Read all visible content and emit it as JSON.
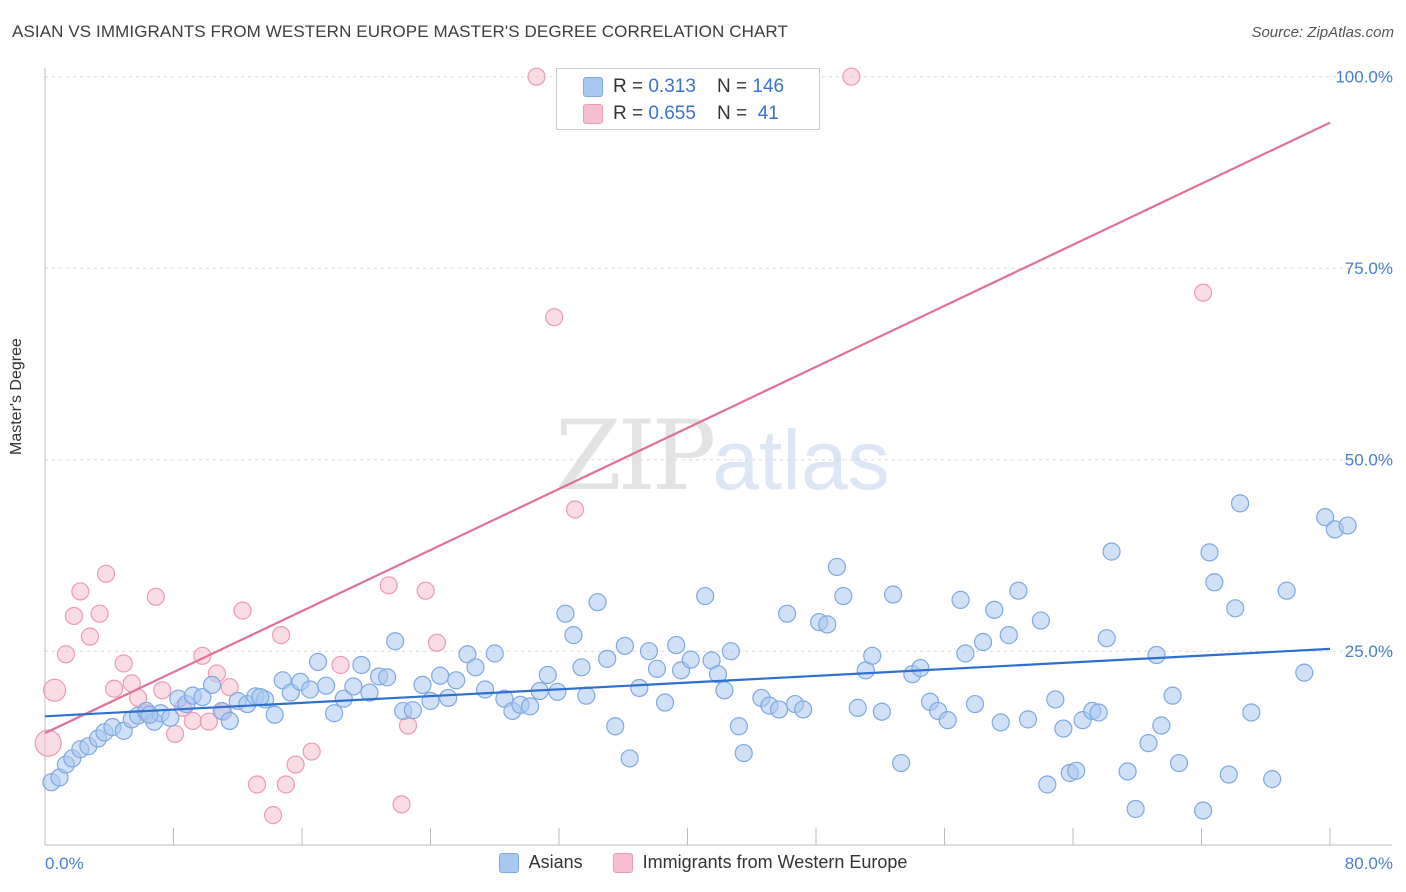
{
  "title": "ASIAN VS IMMIGRANTS FROM WESTERN EUROPE MASTER'S DEGREE CORRELATION CHART",
  "source": "Source: ZipAtlas.com",
  "watermark": {
    "zip": "ZIP",
    "atlas": "atlas"
  },
  "legend": {
    "asians": "Asians",
    "immigrants": "Immigrants from Western Europe"
  },
  "stats": {
    "asians": {
      "r_label": "R = ",
      "r": "0.313",
      "n_label": "N = ",
      "n": "146"
    },
    "immigrants": {
      "r_label": "R = ",
      "r": "0.655",
      "n_label": "N = ",
      "n": " 41"
    }
  },
  "colors": {
    "asians_fill": "#a9c8f0",
    "asians_stroke": "#7ea9e0",
    "asians_line": "#2f6fcf",
    "immigrants_fill": "#f6bfd0",
    "immigrants_stroke": "#ee9ab4",
    "immigrants_line": "#e0709a",
    "tick_text": "#4a7fd0"
  },
  "chart_data": {
    "type": "scatter",
    "title": "ASIAN VS IMMIGRANTS FROM WESTERN EUROPE MASTER'S DEGREE CORRELATION CHART",
    "xlabel": "",
    "ylabel": "Master's Degree",
    "xlim": [
      0,
      80
    ],
    "ylim": [
      0,
      100
    ],
    "x_tick_labels": [
      "0.0%",
      "80.0%"
    ],
    "y_tick_labels": [
      "25.0%",
      "50.0%",
      "75.0%",
      "100.0%"
    ],
    "y_ticks": [
      25,
      50,
      75,
      100
    ],
    "grid": "horizontal dashed",
    "series": [
      {
        "name": "Asians",
        "r": 0.313,
        "n": 146,
        "trend": [
          [
            0,
            16.5
          ],
          [
            80,
            25.3
          ]
        ],
        "points": [
          [
            0.4,
            7.9
          ],
          [
            0.9,
            8.5
          ],
          [
            1.3,
            10.2
          ],
          [
            1.7,
            11.0
          ],
          [
            2.2,
            12.2
          ],
          [
            2.7,
            12.6
          ],
          [
            3.3,
            13.6
          ],
          [
            3.7,
            14.4
          ],
          [
            4.2,
            15.1
          ],
          [
            4.9,
            14.6
          ],
          [
            5.4,
            16.1
          ],
          [
            5.8,
            16.6
          ],
          [
            6.3,
            17.2
          ],
          [
            6.8,
            15.8
          ],
          [
            7.2,
            16.9
          ],
          [
            7.8,
            16.3
          ],
          [
            8.3,
            18.8
          ],
          [
            8.8,
            18.1
          ],
          [
            9.2,
            19.2
          ],
          [
            9.8,
            19.0
          ],
          [
            10.4,
            20.6
          ],
          [
            11.0,
            17.2
          ],
          [
            11.5,
            15.9
          ],
          [
            12.0,
            18.5
          ],
          [
            12.6,
            18.1
          ],
          [
            13.1,
            19.1
          ],
          [
            13.7,
            18.7
          ],
          [
            14.3,
            16.7
          ],
          [
            14.8,
            21.2
          ],
          [
            15.3,
            19.6
          ],
          [
            15.9,
            21.0
          ],
          [
            16.5,
            20.0
          ],
          [
            17.0,
            23.6
          ],
          [
            17.5,
            20.5
          ],
          [
            18.0,
            16.9
          ],
          [
            18.6,
            18.8
          ],
          [
            19.2,
            20.4
          ],
          [
            19.7,
            23.2
          ],
          [
            20.2,
            19.6
          ],
          [
            20.8,
            21.7
          ],
          [
            21.3,
            21.6
          ],
          [
            21.8,
            26.3
          ],
          [
            22.3,
            17.2
          ],
          [
            22.9,
            17.3
          ],
          [
            23.5,
            20.6
          ],
          [
            24.0,
            18.5
          ],
          [
            24.6,
            21.8
          ],
          [
            25.1,
            18.9
          ],
          [
            25.6,
            21.2
          ],
          [
            26.3,
            24.6
          ],
          [
            26.8,
            22.9
          ],
          [
            27.4,
            20.0
          ],
          [
            28.0,
            24.7
          ],
          [
            28.6,
            18.8
          ],
          [
            29.1,
            17.2
          ],
          [
            29.6,
            18.0
          ],
          [
            30.2,
            17.8
          ],
          [
            30.8,
            19.8
          ],
          [
            31.3,
            21.9
          ],
          [
            31.9,
            19.7
          ],
          [
            32.4,
            29.9
          ],
          [
            32.9,
            27.1
          ],
          [
            33.4,
            22.9
          ],
          [
            33.7,
            19.2
          ],
          [
            34.4,
            31.4
          ],
          [
            35.0,
            24.0
          ],
          [
            35.5,
            15.2
          ],
          [
            36.1,
            25.7
          ],
          [
            36.4,
            11.0
          ],
          [
            37.0,
            20.2
          ],
          [
            37.6,
            25.0
          ],
          [
            38.1,
            22.7
          ],
          [
            38.6,
            18.3
          ],
          [
            39.3,
            25.8
          ],
          [
            39.6,
            22.5
          ],
          [
            40.2,
            23.9
          ],
          [
            41.1,
            32.2
          ],
          [
            41.5,
            23.8
          ],
          [
            41.9,
            22.0
          ],
          [
            42.3,
            19.9
          ],
          [
            42.7,
            25.0
          ],
          [
            43.2,
            15.2
          ],
          [
            43.5,
            11.7
          ],
          [
            44.6,
            18.9
          ],
          [
            45.1,
            17.9
          ],
          [
            45.7,
            17.4
          ],
          [
            46.2,
            29.9
          ],
          [
            46.7,
            18.1
          ],
          [
            47.2,
            17.4
          ],
          [
            48.2,
            28.8
          ],
          [
            48.7,
            28.5
          ],
          [
            49.3,
            36.0
          ],
          [
            49.7,
            32.2
          ],
          [
            50.6,
            17.6
          ],
          [
            51.1,
            22.5
          ],
          [
            51.5,
            24.4
          ],
          [
            52.1,
            17.1
          ],
          [
            52.8,
            32.4
          ],
          [
            53.3,
            10.4
          ],
          [
            54.0,
            22.0
          ],
          [
            54.5,
            22.8
          ],
          [
            55.1,
            18.4
          ],
          [
            55.6,
            17.2
          ],
          [
            56.2,
            16.0
          ],
          [
            57.0,
            31.7
          ],
          [
            57.3,
            24.7
          ],
          [
            57.9,
            18.1
          ],
          [
            58.4,
            26.2
          ],
          [
            59.1,
            30.4
          ],
          [
            59.5,
            15.7
          ],
          [
            60.0,
            27.1
          ],
          [
            60.6,
            32.9
          ],
          [
            61.2,
            16.1
          ],
          [
            62.0,
            29.0
          ],
          [
            62.4,
            7.6
          ],
          [
            62.9,
            18.7
          ],
          [
            63.4,
            14.9
          ],
          [
            63.8,
            9.1
          ],
          [
            64.2,
            9.4
          ],
          [
            64.6,
            16.0
          ],
          [
            65.2,
            17.2
          ],
          [
            65.6,
            17.0
          ],
          [
            66.1,
            26.7
          ],
          [
            66.4,
            38.0
          ],
          [
            67.4,
            9.3
          ],
          [
            67.9,
            4.4
          ],
          [
            68.7,
            13.0
          ],
          [
            69.2,
            24.5
          ],
          [
            69.5,
            15.3
          ],
          [
            70.2,
            19.2
          ],
          [
            70.6,
            10.4
          ],
          [
            72.1,
            4.2
          ],
          [
            72.5,
            37.9
          ],
          [
            72.8,
            34.0
          ],
          [
            73.7,
            8.9
          ],
          [
            74.1,
            30.6
          ],
          [
            74.4,
            44.3
          ],
          [
            75.1,
            17.0
          ],
          [
            76.4,
            8.3
          ],
          [
            77.3,
            32.9
          ],
          [
            78.4,
            22.2
          ],
          [
            79.7,
            42.5
          ],
          [
            80.3,
            40.9
          ],
          [
            81.1,
            41.4
          ],
          [
            13.4,
            19.0
          ],
          [
            6.5,
            16.7
          ]
        ]
      },
      {
        "name": "Immigrants from Western Europe",
        "r": 0.655,
        "n": 41,
        "trend": [
          [
            0,
            14.3
          ],
          [
            80,
            94.0
          ]
        ],
        "points": [
          [
            0.2,
            13.0
          ],
          [
            0.6,
            19.9
          ],
          [
            1.3,
            24.6
          ],
          [
            1.8,
            29.6
          ],
          [
            2.2,
            32.8
          ],
          [
            2.8,
            26.9
          ],
          [
            3.4,
            29.9
          ],
          [
            3.8,
            35.1
          ],
          [
            4.3,
            20.1
          ],
          [
            4.9,
            23.4
          ],
          [
            5.4,
            20.8
          ],
          [
            5.8,
            18.9
          ],
          [
            6.3,
            16.9
          ],
          [
            6.9,
            32.1
          ],
          [
            7.3,
            19.9
          ],
          [
            8.1,
            14.2
          ],
          [
            8.6,
            17.6
          ],
          [
            9.2,
            15.9
          ],
          [
            9.8,
            24.4
          ],
          [
            10.2,
            15.8
          ],
          [
            10.7,
            22.1
          ],
          [
            11.1,
            17.1
          ],
          [
            11.5,
            20.3
          ],
          [
            12.3,
            30.3
          ],
          [
            13.2,
            7.6
          ],
          [
            14.2,
            3.6
          ],
          [
            14.7,
            27.1
          ],
          [
            15.0,
            7.6
          ],
          [
            15.6,
            10.2
          ],
          [
            16.6,
            11.9
          ],
          [
            18.4,
            23.2
          ],
          [
            21.4,
            33.6
          ],
          [
            22.2,
            5.0
          ],
          [
            22.6,
            15.3
          ],
          [
            23.7,
            32.9
          ],
          [
            24.4,
            26.1
          ],
          [
            30.6,
            100.0
          ],
          [
            31.7,
            68.6
          ],
          [
            33.0,
            43.5
          ],
          [
            50.2,
            100.0
          ],
          [
            72.1,
            71.8
          ]
        ]
      }
    ]
  }
}
